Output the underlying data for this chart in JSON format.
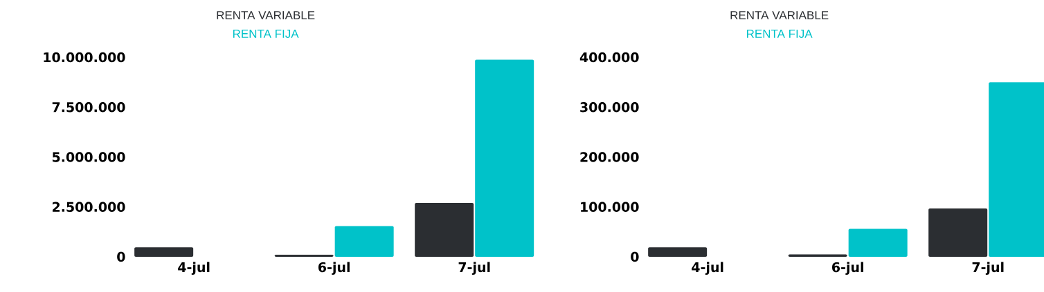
{
  "chart_data": [
    {
      "type": "bar",
      "categories": [
        "4-jul",
        "6-jul",
        "7-jul"
      ],
      "series": [
        {
          "name": "RENTA VARIABLE",
          "color": "#2b2e32",
          "values": [
            480000,
            100000,
            2700000
          ]
        },
        {
          "name": "RENTA FIJA",
          "color": "#00c2c9",
          "values": [
            0,
            1540000,
            9880000
          ]
        }
      ],
      "ylim": [
        0,
        10000000
      ],
      "yticks": [
        {
          "value": 0,
          "label": "0"
        },
        {
          "value": 2500000,
          "label": "2.500.000"
        },
        {
          "value": 5000000,
          "label": "5.000.000"
        },
        {
          "value": 7500000,
          "label": "7.500.000"
        },
        {
          "value": 10000000,
          "label": "10.000.000"
        }
      ],
      "legend": "top",
      "grid": false
    },
    {
      "type": "bar",
      "categories": [
        "4-jul",
        "6-jul",
        "7-jul"
      ],
      "series": [
        {
          "name": "RENTA VARIABLE",
          "color": "#2b2e32",
          "values": [
            19000,
            5000,
            97000
          ]
        },
        {
          "name": "RENTA FIJA",
          "color": "#00c2c9",
          "values": [
            0,
            56000,
            350000
          ]
        }
      ],
      "ylim": [
        0,
        400000
      ],
      "yticks": [
        {
          "value": 0,
          "label": "0"
        },
        {
          "value": 100000,
          "label": "100.000"
        },
        {
          "value": 200000,
          "label": "200.000"
        },
        {
          "value": 300000,
          "label": "300.000"
        },
        {
          "value": 400000,
          "label": "400.000"
        }
      ],
      "legend": "top",
      "grid": false
    }
  ]
}
